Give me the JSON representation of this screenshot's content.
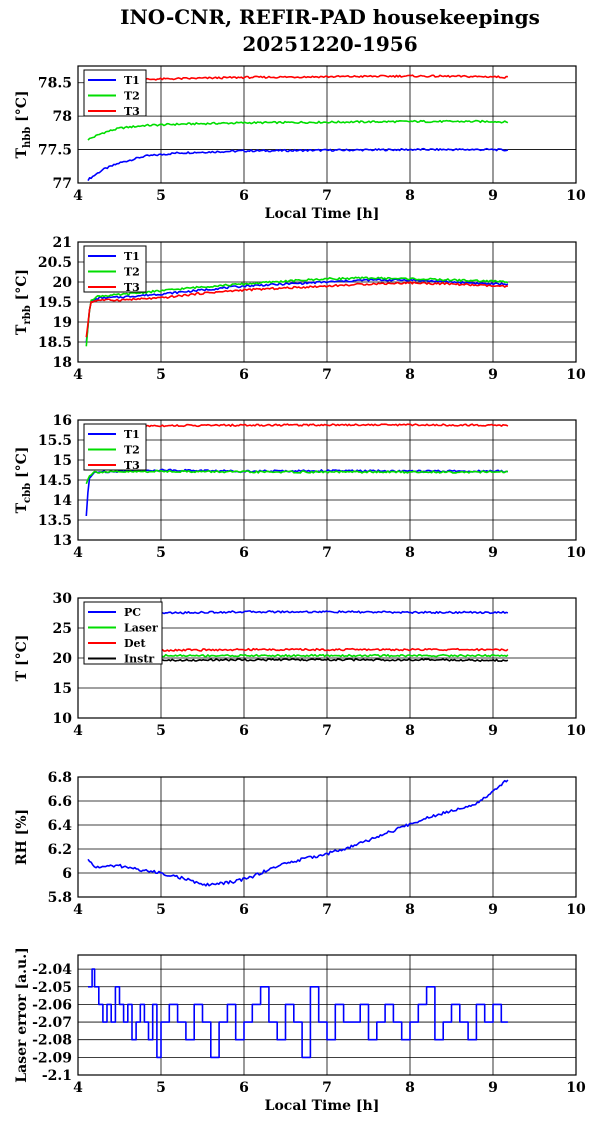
{
  "title_line1": "INO-CNR, REFIR-PAD housekeepings",
  "title_line2": "20251220-1956",
  "colors": {
    "blue": "#0000ff",
    "green": "#00dd00",
    "red": "#ff0000",
    "black": "#000000"
  },
  "chart_data": [
    {
      "type": "line",
      "ylabel": "T",
      "ylabel_sub": "hbb",
      "ylabel_unit": "[°C]",
      "xlabel": "Local Time [h]",
      "xlim": [
        4,
        10
      ],
      "ylim": [
        77,
        78.75
      ],
      "xticks": [
        4,
        5,
        6,
        7,
        8,
        9,
        10
      ],
      "yticks": [
        77,
        77.5,
        78,
        78.5
      ],
      "ytick_labels": [
        "77",
        "77.5",
        "78",
        "78.5"
      ],
      "legend_position": "top-left",
      "series": [
        {
          "name": "T1",
          "color": "blue",
          "x": [
            4.12,
            4.3,
            4.5,
            4.8,
            5.2,
            6.0,
            7.0,
            8.0,
            9.0,
            9.18
          ],
          "y": [
            77.05,
            77.2,
            77.3,
            77.4,
            77.45,
            77.48,
            77.49,
            77.5,
            77.5,
            77.49
          ]
        },
        {
          "name": "T2",
          "color": "green",
          "x": [
            4.12,
            4.3,
            4.5,
            4.8,
            5.2,
            6.0,
            7.0,
            8.0,
            9.0,
            9.18
          ],
          "y": [
            77.65,
            77.75,
            77.82,
            77.86,
            77.88,
            77.9,
            77.91,
            77.92,
            77.92,
            77.91
          ]
        },
        {
          "name": "T3",
          "color": "red",
          "x": [
            4.12,
            4.3,
            4.5,
            4.8,
            5.2,
            6.0,
            7.0,
            8.0,
            9.0,
            9.18
          ],
          "y": [
            78.5,
            78.52,
            78.53,
            78.55,
            78.56,
            78.58,
            78.59,
            78.6,
            78.59,
            78.58
          ]
        }
      ]
    },
    {
      "type": "line",
      "ylabel": "T",
      "ylabel_sub": "rbb",
      "ylabel_unit": "[°C]",
      "xlabel": "",
      "xlim": [
        4,
        10
      ],
      "ylim": [
        18,
        21
      ],
      "xticks": [
        4,
        5,
        6,
        7,
        8,
        9,
        10
      ],
      "yticks": [
        18,
        18.5,
        19,
        19.5,
        20,
        20.5,
        21
      ],
      "ytick_labels": [
        "18",
        "18.5",
        "19",
        "19.5",
        "20",
        "20.5",
        "21"
      ],
      "legend_position": "top-left",
      "series": [
        {
          "name": "T1",
          "color": "blue",
          "x": [
            4.1,
            4.15,
            4.25,
            4.5,
            5.0,
            5.5,
            6.0,
            6.5,
            7.0,
            7.5,
            8.0,
            8.5,
            9.0,
            9.18
          ],
          "y": [
            18.5,
            19.5,
            19.6,
            19.62,
            19.7,
            19.8,
            19.9,
            19.95,
            20.0,
            20.05,
            20.05,
            20.0,
            19.95,
            19.95
          ]
        },
        {
          "name": "T2",
          "color": "green",
          "x": [
            4.1,
            4.15,
            4.25,
            4.5,
            5.0,
            5.5,
            6.0,
            6.5,
            7.0,
            7.5,
            8.0,
            8.5,
            9.0,
            9.18
          ],
          "y": [
            18.4,
            19.55,
            19.65,
            19.68,
            19.78,
            19.88,
            19.95,
            20.02,
            20.08,
            20.1,
            20.08,
            20.05,
            20.02,
            20.0
          ]
        },
        {
          "name": "T3",
          "color": "red",
          "x": [
            4.1,
            4.15,
            4.25,
            4.5,
            5.0,
            5.5,
            6.0,
            6.5,
            7.0,
            7.5,
            8.0,
            8.5,
            9.0,
            9.18
          ],
          "y": [
            18.6,
            19.5,
            19.55,
            19.55,
            19.6,
            19.72,
            19.8,
            19.85,
            19.9,
            19.95,
            19.98,
            19.95,
            19.9,
            19.88
          ]
        }
      ]
    },
    {
      "type": "line",
      "ylabel": "T",
      "ylabel_sub": "cbb",
      "ylabel_unit": "[°C]",
      "xlabel": "",
      "xlim": [
        4,
        10
      ],
      "ylim": [
        13,
        16
      ],
      "xticks": [
        4,
        5,
        6,
        7,
        8,
        9,
        10
      ],
      "yticks": [
        13,
        13.5,
        14,
        14.5,
        15,
        15.5,
        16
      ],
      "ytick_labels": [
        "13",
        "13.5",
        "14",
        "14.5",
        "15",
        "15.5",
        "16"
      ],
      "legend_position": "top-left",
      "series": [
        {
          "name": "T1",
          "color": "blue",
          "x": [
            4.1,
            4.13,
            4.2,
            4.5,
            5.0,
            6.0,
            7.0,
            8.0,
            9.0,
            9.18
          ],
          "y": [
            13.6,
            14.5,
            14.7,
            14.72,
            14.75,
            14.72,
            14.73,
            14.72,
            14.72,
            14.72
          ]
        },
        {
          "name": "T2",
          "color": "green",
          "x": [
            4.1,
            4.13,
            4.2,
            4.5,
            5.0,
            6.0,
            7.0,
            8.0,
            9.0,
            9.18
          ],
          "y": [
            14.4,
            14.6,
            14.7,
            14.7,
            14.72,
            14.7,
            14.7,
            14.7,
            14.7,
            14.7
          ]
        },
        {
          "name": "T3",
          "color": "red",
          "x": [
            4.1,
            4.2,
            4.5,
            5.0,
            6.0,
            7.0,
            8.0,
            9.0,
            9.18
          ],
          "y": [
            15.85,
            15.85,
            15.85,
            15.86,
            15.87,
            15.88,
            15.88,
            15.87,
            15.86
          ]
        }
      ]
    },
    {
      "type": "line",
      "ylabel": "T [°C]",
      "ylabel_sub": "",
      "ylabel_unit": "",
      "xlabel": "",
      "xlim": [
        4,
        10
      ],
      "ylim": [
        10,
        30
      ],
      "xticks": [
        4,
        5,
        6,
        7,
        8,
        9,
        10
      ],
      "yticks": [
        10,
        15,
        20,
        25,
        30
      ],
      "ytick_labels": [
        "10",
        "15",
        "20",
        "25",
        "30"
      ],
      "legend_position": "top-left",
      "series": [
        {
          "name": "PC",
          "color": "blue",
          "x": [
            4.1,
            5.0,
            6.0,
            7.0,
            8.0,
            9.0,
            9.18
          ],
          "y": [
            27.2,
            27.5,
            27.7,
            27.7,
            27.6,
            27.6,
            27.6
          ]
        },
        {
          "name": "Laser",
          "color": "green",
          "x": [
            4.1,
            5.0,
            6.0,
            7.0,
            8.0,
            9.0,
            9.18
          ],
          "y": [
            20.3,
            20.4,
            20.4,
            20.4,
            20.4,
            20.4,
            20.4
          ]
        },
        {
          "name": "Det",
          "color": "red",
          "x": [
            4.1,
            5.0,
            6.0,
            7.0,
            8.0,
            9.0,
            9.18
          ],
          "y": [
            21.2,
            21.3,
            21.4,
            21.4,
            21.4,
            21.4,
            21.4
          ]
        },
        {
          "name": "Instr",
          "color": "black",
          "x": [
            4.1,
            5.0,
            6.0,
            7.0,
            8.0,
            9.0,
            9.18
          ],
          "y": [
            19.5,
            19.6,
            19.7,
            19.7,
            19.7,
            19.6,
            19.6
          ]
        }
      ]
    },
    {
      "type": "line",
      "ylabel": "RH [%]",
      "ylabel_sub": "",
      "ylabel_unit": "",
      "xlabel": "",
      "xlim": [
        4,
        10
      ],
      "ylim": [
        5.8,
        6.8
      ],
      "xticks": [
        4,
        5,
        6,
        7,
        8,
        9,
        10
      ],
      "yticks": [
        5.8,
        6,
        6.2,
        6.4,
        6.6,
        6.8
      ],
      "ytick_labels": [
        "5.8",
        "6",
        "6.2",
        "6.4",
        "6.6",
        "6.8"
      ],
      "legend_position": "",
      "series": [
        {
          "name": "",
          "color": "blue",
          "x": [
            4.12,
            4.2,
            4.5,
            4.8,
            5.0,
            5.3,
            5.5,
            5.7,
            5.9,
            6.1,
            6.3,
            6.5,
            6.8,
            7.0,
            7.3,
            7.6,
            7.9,
            8.2,
            8.5,
            8.8,
            9.0,
            9.18
          ],
          "y": [
            6.11,
            6.05,
            6.06,
            6.02,
            6.0,
            5.95,
            5.9,
            5.91,
            5.93,
            5.97,
            6.03,
            6.08,
            6.13,
            6.16,
            6.22,
            6.3,
            6.38,
            6.46,
            6.52,
            6.58,
            6.68,
            6.78
          ]
        }
      ]
    },
    {
      "type": "line",
      "ylabel": "Laser error [a.u.]",
      "ylabel_sub": "",
      "ylabel_unit": "",
      "xlabel": "Local Time [h]",
      "xlim": [
        4,
        10
      ],
      "ylim": [
        -2.1,
        -2.032
      ],
      "xticks": [
        4,
        5,
        6,
        7,
        8,
        9,
        10
      ],
      "yticks": [
        -2.1,
        -2.09,
        -2.08,
        -2.07,
        -2.06,
        -2.05,
        -2.04
      ],
      "ytick_labels": [
        "-2.1",
        "-2.09",
        "-2.08",
        "-2.07",
        "-2.06",
        "-2.05",
        "-2.04"
      ],
      "legend_position": "",
      "series": [
        {
          "name": "",
          "color": "blue",
          "x": [
            4.12,
            4.17,
            4.2,
            4.25,
            4.3,
            4.35,
            4.4,
            4.45,
            4.5,
            4.55,
            4.6,
            4.65,
            4.7,
            4.75,
            4.8,
            4.85,
            4.9,
            4.95,
            5.0,
            5.1,
            5.2,
            5.3,
            5.4,
            5.5,
            5.6,
            5.7,
            5.8,
            5.9,
            6.0,
            6.1,
            6.2,
            6.3,
            6.4,
            6.5,
            6.6,
            6.7,
            6.8,
            6.9,
            7.0,
            7.1,
            7.2,
            7.3,
            7.4,
            7.5,
            7.6,
            7.7,
            7.8,
            7.9,
            8.0,
            8.1,
            8.2,
            8.3,
            8.4,
            8.5,
            8.6,
            8.7,
            8.8,
            8.9,
            9.0,
            9.1,
            9.18
          ],
          "y": [
            -2.05,
            -2.04,
            -2.05,
            -2.06,
            -2.07,
            -2.06,
            -2.07,
            -2.05,
            -2.06,
            -2.07,
            -2.06,
            -2.08,
            -2.07,
            -2.06,
            -2.07,
            -2.08,
            -2.06,
            -2.09,
            -2.07,
            -2.06,
            -2.07,
            -2.08,
            -2.06,
            -2.07,
            -2.09,
            -2.07,
            -2.06,
            -2.08,
            -2.07,
            -2.06,
            -2.05,
            -2.07,
            -2.08,
            -2.06,
            -2.07,
            -2.09,
            -2.05,
            -2.07,
            -2.08,
            -2.06,
            -2.07,
            -2.07,
            -2.06,
            -2.08,
            -2.07,
            -2.06,
            -2.07,
            -2.08,
            -2.07,
            -2.06,
            -2.05,
            -2.08,
            -2.07,
            -2.06,
            -2.07,
            -2.08,
            -2.06,
            -2.07,
            -2.06,
            -2.07,
            -2.07
          ]
        }
      ]
    }
  ]
}
